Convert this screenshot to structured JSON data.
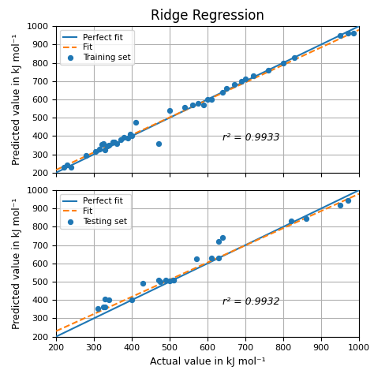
{
  "chart_data": [
    {
      "type": "scatter",
      "title": "Ridge Regression",
      "ylabel": "Predicted value in kJ mol⁻¹",
      "annotations": [
        "r² = 0.9933"
      ],
      "xlim": [
        200,
        1000
      ],
      "ylim": [
        200,
        1000
      ],
      "xticks": [
        200,
        300,
        400,
        500,
        600,
        700,
        800,
        900,
        1000
      ],
      "yticks": [
        200,
        300,
        400,
        500,
        600,
        700,
        800,
        900,
        1000
      ],
      "grid": true,
      "legend": "upper left",
      "tick_labels": "y",
      "series": [
        {
          "name": "Perfect fit",
          "type": "line",
          "line_style": "solid",
          "x": [
            200,
            1000
          ],
          "values": [
            200,
            1000
          ]
        },
        {
          "name": "Fit",
          "type": "line",
          "line_style": "dashed",
          "x": [
            200,
            1000
          ],
          "values": [
            215,
            980
          ]
        },
        {
          "name": "Training set",
          "type": "scatter",
          "marker": "o",
          "x": [
            220,
            230,
            240,
            280,
            305,
            315,
            320,
            325,
            330,
            335,
            340,
            350,
            355,
            360,
            370,
            380,
            390,
            395,
            400,
            410,
            470,
            500,
            540,
            560,
            575,
            590,
            600,
            610,
            640,
            650,
            670,
            690,
            700,
            720,
            760,
            800,
            830,
            950,
            970,
            985
          ],
          "values": [
            230,
            240,
            230,
            295,
            315,
            330,
            355,
            360,
            325,
            345,
            350,
            365,
            365,
            360,
            380,
            395,
            390,
            410,
            400,
            475,
            360,
            540,
            555,
            570,
            580,
            570,
            600,
            600,
            640,
            660,
            680,
            700,
            710,
            730,
            760,
            800,
            830,
            950,
            960,
            960
          ]
        }
      ]
    },
    {
      "type": "scatter",
      "xlabel": "Actual value in kJ mol⁻¹",
      "ylabel": "Predicted value in kJ mol⁻¹",
      "annotations": [
        "r² = 0.9932"
      ],
      "xlim": [
        200,
        1000
      ],
      "ylim": [
        200,
        1000
      ],
      "xticks": [
        200,
        300,
        400,
        500,
        600,
        700,
        800,
        900,
        1000
      ],
      "yticks": [
        200,
        300,
        400,
        500,
        600,
        700,
        800,
        900,
        1000
      ],
      "grid": true,
      "legend": "upper left",
      "series": [
        {
          "name": "Perfect fit",
          "type": "line",
          "line_style": "solid",
          "x": [
            200,
            1000
          ],
          "values": [
            200,
            1000
          ]
        },
        {
          "name": "Fit",
          "type": "line",
          "line_style": "dashed",
          "x": [
            200,
            1000
          ],
          "values": [
            230,
            980
          ]
        },
        {
          "name": "Testing set",
          "type": "scatter",
          "marker": "o",
          "x": [
            310,
            325,
            330,
            330,
            340,
            400,
            430,
            470,
            475,
            490,
            500,
            510,
            510,
            570,
            610,
            630,
            630,
            640,
            820,
            860,
            950,
            970
          ],
          "values": [
            355,
            360,
            405,
            360,
            400,
            400,
            490,
            510,
            500,
            510,
            505,
            510,
            510,
            625,
            630,
            628,
            720,
            740,
            830,
            845,
            920,
            945
          ]
        }
      ]
    }
  ]
}
